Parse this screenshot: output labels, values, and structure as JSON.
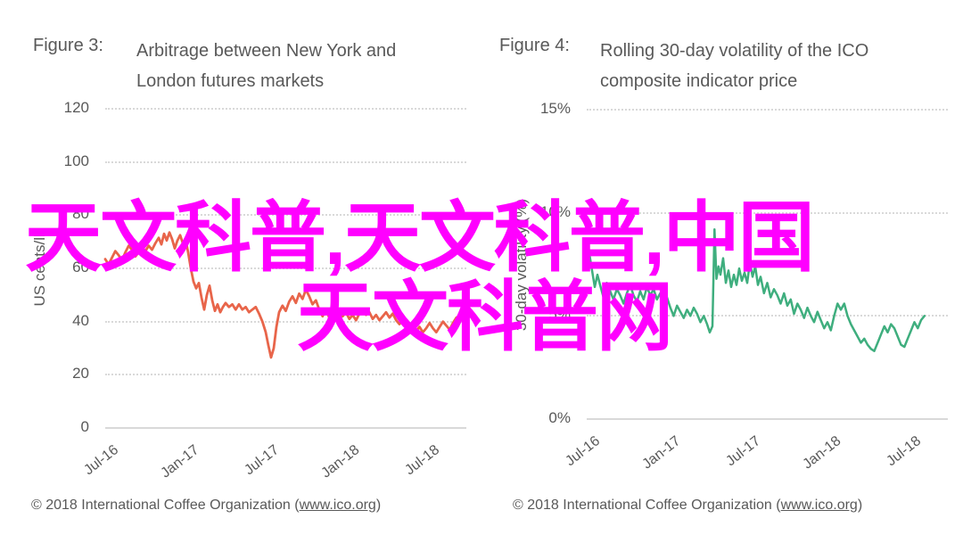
{
  "watermark": {
    "line1": "天文科普,天文科普,中国",
    "line2": "天文科普网",
    "color": "#ff00ff"
  },
  "panels": [
    {
      "figure_label": "Figure 3:",
      "title_line1": "Arbitrage between New York and",
      "title_line2": "London futures markets",
      "y_axis_title": "US cents/lb",
      "line_color": "#e8654a",
      "footer": {
        "prefix": "© 2018 International Coffee Organization (",
        "link": "www.ico.org",
        "suffix": ")"
      }
    },
    {
      "figure_label": "Figure 4:",
      "title_line1": "Rolling 30-day volatility of the ICO",
      "title_line2": "composite indicator price",
      "y_axis_title": "30-day volatility (%)",
      "line_color": "#3fae7e",
      "footer": {
        "prefix": "© 2018 International Coffee Organization (",
        "link": "www.ico.org",
        "suffix": ")"
      }
    }
  ],
  "chart_data": [
    {
      "type": "line",
      "figure": "Figure 3",
      "title": "Arbitrage between New York and London futures markets",
      "ylabel": "US cents/lb",
      "xlabel": "",
      "ylim": [
        0,
        120
      ],
      "x_unit": "months since Jul-2016",
      "grid": "horizontal-dotted",
      "legend": "none",
      "yticks": [
        {
          "v": 120,
          "label": "120"
        },
        {
          "v": 100,
          "label": "100"
        },
        {
          "v": 80,
          "label": "80"
        },
        {
          "v": 60,
          "label": "60"
        },
        {
          "v": 40,
          "label": "40"
        },
        {
          "v": 20,
          "label": "20"
        },
        {
          "v": 0,
          "label": "0"
        }
      ],
      "xticks": [
        {
          "m": 0,
          "label": "Jul-16"
        },
        {
          "m": 6,
          "label": "Jan-17"
        },
        {
          "m": 12,
          "label": "Jul-17"
        },
        {
          "m": 18,
          "label": "Jan-18"
        },
        {
          "m": 24,
          "label": "Jul-18"
        }
      ],
      "series": [
        {
          "name": "New York / London futures arbitrage",
          "color": "#e8654a",
          "points": [
            [
              0,
              63.5
            ],
            [
              0.25,
              61.5
            ],
            [
              0.5,
              64
            ],
            [
              0.75,
              66.5
            ],
            [
              1,
              65
            ],
            [
              1.25,
              63
            ],
            [
              1.5,
              66
            ],
            [
              1.75,
              68.5
            ],
            [
              2,
              67
            ],
            [
              2.25,
              64.5
            ],
            [
              2.5,
              66
            ],
            [
              2.75,
              68
            ],
            [
              3,
              66.5
            ],
            [
              3.25,
              68.5
            ],
            [
              3.5,
              67
            ],
            [
              3.75,
              69.5
            ],
            [
              4,
              71.5
            ],
            [
              4.2,
              69
            ],
            [
              4.4,
              73
            ],
            [
              4.6,
              70.5
            ],
            [
              4.8,
              73.5
            ],
            [
              5,
              71
            ],
            [
              5.2,
              67.5
            ],
            [
              5.4,
              70.5
            ],
            [
              5.6,
              72.5
            ],
            [
              5.8,
              69.5
            ],
            [
              6,
              71
            ],
            [
              6.2,
              66
            ],
            [
              6.4,
              60
            ],
            [
              6.6,
              55
            ],
            [
              6.8,
              52.5
            ],
            [
              7,
              54.5
            ],
            [
              7.2,
              49
            ],
            [
              7.4,
              44.5
            ],
            [
              7.6,
              50
            ],
            [
              7.8,
              53.5
            ],
            [
              8,
              48
            ],
            [
              8.2,
              44
            ],
            [
              8.4,
              46.5
            ],
            [
              8.6,
              43.5
            ],
            [
              8.8,
              45.5
            ],
            [
              9,
              47
            ],
            [
              9.25,
              45.5
            ],
            [
              9.5,
              46.5
            ],
            [
              9.75,
              44.5
            ],
            [
              10,
              46.5
            ],
            [
              10.25,
              44.5
            ],
            [
              10.5,
              45.5
            ],
            [
              10.75,
              43.5
            ],
            [
              11,
              44.5
            ],
            [
              11.25,
              45.5
            ],
            [
              11.5,
              43
            ],
            [
              11.75,
              40
            ],
            [
              12,
              36
            ],
            [
              12.2,
              31
            ],
            [
              12.4,
              26.5
            ],
            [
              12.6,
              30
            ],
            [
              12.8,
              38
            ],
            [
              13,
              43.5
            ],
            [
              13.25,
              46
            ],
            [
              13.5,
              44
            ],
            [
              13.75,
              47.5
            ],
            [
              14,
              49.5
            ],
            [
              14.25,
              47
            ],
            [
              14.5,
              50.5
            ],
            [
              14.75,
              48.5
            ],
            [
              15,
              52
            ],
            [
              15.25,
              49.5
            ],
            [
              15.5,
              46.5
            ],
            [
              15.75,
              48
            ],
            [
              16,
              44.5
            ],
            [
              16.25,
              42
            ],
            [
              16.5,
              44.5
            ],
            [
              16.75,
              41.5
            ],
            [
              17,
              39.5
            ],
            [
              17.25,
              42.5
            ],
            [
              17.5,
              44.5
            ],
            [
              17.75,
              42
            ],
            [
              18,
              43.5
            ],
            [
              18.25,
              41
            ],
            [
              18.5,
              42.5
            ],
            [
              18.75,
              40.5
            ],
            [
              19,
              43
            ],
            [
              19.25,
              44.5
            ],
            [
              19.5,
              42.5
            ],
            [
              19.75,
              43.5
            ],
            [
              20,
              41
            ],
            [
              20.25,
              42.5
            ],
            [
              20.5,
              40.5
            ],
            [
              20.75,
              42
            ],
            [
              21,
              43.5
            ],
            [
              21.25,
              41.5
            ],
            [
              21.5,
              43
            ],
            [
              21.75,
              40.5
            ],
            [
              22,
              39
            ],
            [
              22.25,
              41
            ],
            [
              22.5,
              38.5
            ],
            [
              22.75,
              37
            ],
            [
              23,
              39.5
            ],
            [
              23.25,
              36.5
            ],
            [
              23.5,
              38
            ],
            [
              23.75,
              36
            ],
            [
              24,
              37.5
            ],
            [
              24.25,
              39.5
            ],
            [
              24.5,
              37.5
            ],
            [
              24.75,
              36
            ],
            [
              25,
              38
            ],
            [
              25.25,
              40
            ],
            [
              25.5,
              38.5
            ],
            [
              25.75,
              37
            ],
            [
              26,
              39.5
            ],
            [
              26.25,
              41.5
            ],
            [
              26.5,
              42
            ]
          ]
        }
      ]
    },
    {
      "type": "line",
      "figure": "Figure 4",
      "title": "Rolling 30-day volatility of the ICO composite indicator price",
      "ylabel": "30-day volatility (%)",
      "xlabel": "",
      "ylim": [
        0,
        15
      ],
      "x_unit": "months since Jul-2016",
      "grid": "horizontal-dotted",
      "legend": "none",
      "yticks": [
        {
          "v": 15,
          "label": "15%"
        },
        {
          "v": 10,
          "label": "10%"
        },
        {
          "v": 5,
          "label": "5%"
        },
        {
          "v": 0,
          "label": "0%"
        }
      ],
      "xticks": [
        {
          "m": 0,
          "label": "Jul-16"
        },
        {
          "m": 6,
          "label": "Jan-17"
        },
        {
          "m": 12,
          "label": "Jul-17"
        },
        {
          "m": 18,
          "label": "Jan-18"
        },
        {
          "m": 24,
          "label": "Jul-18"
        }
      ],
      "series": [
        {
          "name": "Rolling 30-day volatility",
          "color": "#3fae7e",
          "points": [
            [
              0,
              7.6
            ],
            [
              0.2,
              8
            ],
            [
              0.4,
              7.2
            ],
            [
              0.6,
              6.4
            ],
            [
              0.8,
              7
            ],
            [
              1,
              6.5
            ],
            [
              1.25,
              5.9
            ],
            [
              1.5,
              6.6
            ],
            [
              1.75,
              6.2
            ],
            [
              2,
              5.8
            ],
            [
              2.25,
              6.3
            ],
            [
              2.5,
              6
            ],
            [
              2.75,
              5.6
            ],
            [
              3,
              6.1
            ],
            [
              3.25,
              6.5
            ],
            [
              3.5,
              6
            ],
            [
              3.75,
              5.7
            ],
            [
              4,
              6.2
            ],
            [
              4.25,
              5.8
            ],
            [
              4.5,
              6.4
            ],
            [
              4.75,
              6
            ],
            [
              5,
              6.3
            ],
            [
              5.25,
              5.8
            ],
            [
              5.5,
              6.1
            ],
            [
              5.75,
              5.6
            ],
            [
              6,
              5.9
            ],
            [
              6.25,
              5.4
            ],
            [
              6.5,
              5
            ],
            [
              6.75,
              5.5
            ],
            [
              7,
              5.2
            ],
            [
              7.25,
              4.9
            ],
            [
              7.5,
              5.3
            ],
            [
              7.75,
              5
            ],
            [
              8,
              5.4
            ],
            [
              8.25,
              5.1
            ],
            [
              8.5,
              4.7
            ],
            [
              8.75,
              5
            ],
            [
              9,
              4.6
            ],
            [
              9.2,
              4.2
            ],
            [
              9.4,
              4.5
            ],
            [
              9.55,
              9.2
            ],
            [
              9.7,
              6.8
            ],
            [
              9.85,
              7.4
            ],
            [
              10,
              7
            ],
            [
              10.2,
              7.8
            ],
            [
              10.4,
              6.6
            ],
            [
              10.6,
              7.2
            ],
            [
              10.8,
              6.4
            ],
            [
              11,
              7
            ],
            [
              11.2,
              6.5
            ],
            [
              11.4,
              7.3
            ],
            [
              11.6,
              6.7
            ],
            [
              11.8,
              7.1
            ],
            [
              12,
              6.6
            ],
            [
              12.2,
              7.6
            ],
            [
              12.4,
              6.9
            ],
            [
              12.6,
              7.4
            ],
            [
              12.8,
              6.5
            ],
            [
              13,
              6.9
            ],
            [
              13.25,
              6.1
            ],
            [
              13.5,
              6.6
            ],
            [
              13.75,
              5.9
            ],
            [
              14,
              6.3
            ],
            [
              14.25,
              6
            ],
            [
              14.5,
              5.6
            ],
            [
              14.75,
              6.1
            ],
            [
              15,
              5.5
            ],
            [
              15.25,
              5.8
            ],
            [
              15.5,
              5.1
            ],
            [
              15.75,
              5.6
            ],
            [
              16,
              5.3
            ],
            [
              16.25,
              4.9
            ],
            [
              16.5,
              5.4
            ],
            [
              16.75,
              5
            ],
            [
              17,
              4.7
            ],
            [
              17.25,
              5.2
            ],
            [
              17.5,
              4.8
            ],
            [
              17.75,
              4.4
            ],
            [
              18,
              4.7
            ],
            [
              18.25,
              4.3
            ],
            [
              18.5,
              5
            ],
            [
              18.75,
              5.6
            ],
            [
              19,
              5.3
            ],
            [
              19.25,
              5.6
            ],
            [
              19.5,
              5
            ],
            [
              19.75,
              4.6
            ],
            [
              20,
              4.3
            ],
            [
              20.25,
              4
            ],
            [
              20.5,
              3.7
            ],
            [
              20.75,
              3.9
            ],
            [
              21,
              3.6
            ],
            [
              21.25,
              3.4
            ],
            [
              21.5,
              3.3
            ],
            [
              21.75,
              3.7
            ],
            [
              22,
              4.1
            ],
            [
              22.25,
              4.5
            ],
            [
              22.5,
              4.2
            ],
            [
              22.75,
              4.6
            ],
            [
              23,
              4.4
            ],
            [
              23.25,
              4
            ],
            [
              23.5,
              3.6
            ],
            [
              23.75,
              3.5
            ],
            [
              24,
              3.9
            ],
            [
              24.25,
              4.3
            ],
            [
              24.5,
              4.7
            ],
            [
              24.75,
              4.4
            ],
            [
              25,
              4.8
            ],
            [
              25.25,
              5
            ]
          ]
        }
      ]
    }
  ]
}
